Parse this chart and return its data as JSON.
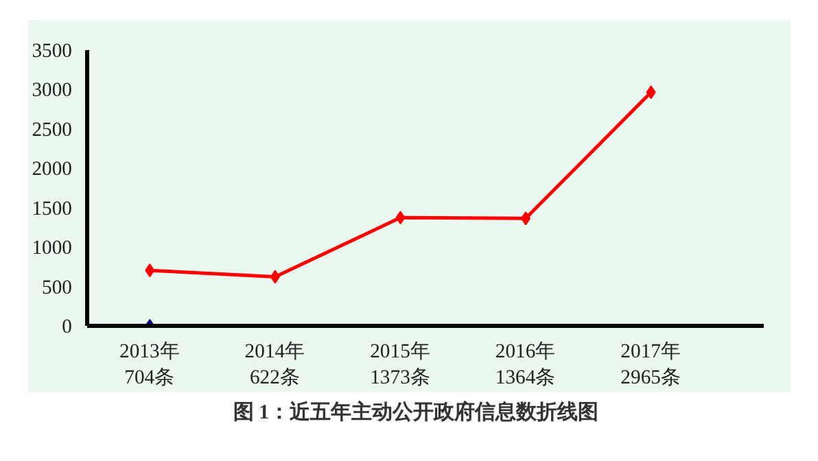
{
  "chart_data": {
    "type": "line",
    "title": "图 1：近五年主动公开政府信息数折线图",
    "categories": [
      "2013年\n704条",
      "2014年\n622条",
      "2015年\n1373条",
      "2016年\n1364条",
      "2017年\n2965条"
    ],
    "series": [
      {
        "color": "#ff0000",
        "values": [
          704,
          622,
          1373,
          1364,
          2965
        ]
      },
      {
        "type": "scatter",
        "color": "#000080",
        "values": [
          0,
          null,
          null,
          null,
          null
        ]
      }
    ],
    "ylim": [
      0,
      3500
    ],
    "yticks": [
      0,
      500,
      1000,
      1500,
      2000,
      2500,
      3000,
      3500
    ],
    "grid": false,
    "marker": "diamond",
    "line_style": "solid"
  }
}
